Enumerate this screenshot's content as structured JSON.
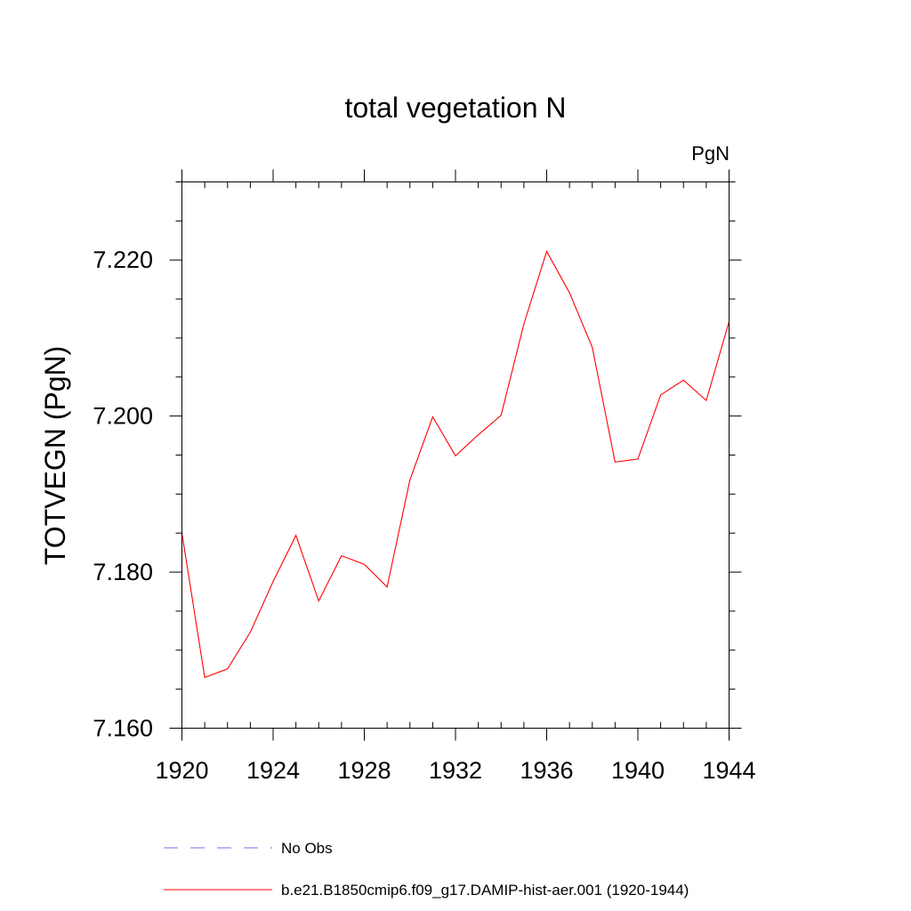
{
  "chart_data": {
    "type": "line",
    "title": "total vegetation N",
    "units_label": "PgN",
    "ylabel": "TOTVEGN  (PgN)",
    "xlabel": "",
    "xlim": [
      1920,
      1944
    ],
    "ylim": [
      7.16,
      7.23
    ],
    "x_ticks": [
      1920,
      1924,
      1928,
      1932,
      1936,
      1940,
      1944
    ],
    "x_tick_labels": [
      "1920",
      "1924",
      "1928",
      "1932",
      "1936",
      "1940",
      "1944"
    ],
    "y_ticks": [
      7.16,
      7.18,
      7.2,
      7.22
    ],
    "y_tick_labels": [
      "7.160",
      "7.180",
      "7.200",
      "7.220"
    ],
    "grid": false,
    "legend_position": "bottom",
    "series": [
      {
        "name": "b.e21.B1850cmip6.f09_g17.DAMIP-hist-aer.001 (1920-1944)",
        "color": "#ff0000",
        "dash": "solid",
        "x": [
          1920,
          1921,
          1922,
          1923,
          1924,
          1925,
          1926,
          1927,
          1928,
          1929,
          1930,
          1931,
          1932,
          1933,
          1934,
          1935,
          1936,
          1937,
          1938,
          1939,
          1940,
          1941,
          1942,
          1943,
          1944
        ],
        "values": [
          7.185,
          7.1665,
          7.1676,
          7.1723,
          7.1788,
          7.1847,
          7.1763,
          7.1821,
          7.181,
          7.1781,
          7.1918,
          7.1999,
          7.1949,
          7.1976,
          7.2001,
          7.2118,
          7.2211,
          7.2158,
          7.2088,
          7.1941,
          7.1945,
          7.2027,
          7.2046,
          7.202,
          7.2121
        ]
      }
    ],
    "legend": [
      {
        "name": "No Obs",
        "color": "#7b68ee",
        "dash": "dashed"
      },
      {
        "name": "b.e21.B1850cmip6.f09_g17.DAMIP-hist-aer.001 (1920-1944)",
        "color": "#ff0000",
        "dash": "solid"
      }
    ]
  }
}
